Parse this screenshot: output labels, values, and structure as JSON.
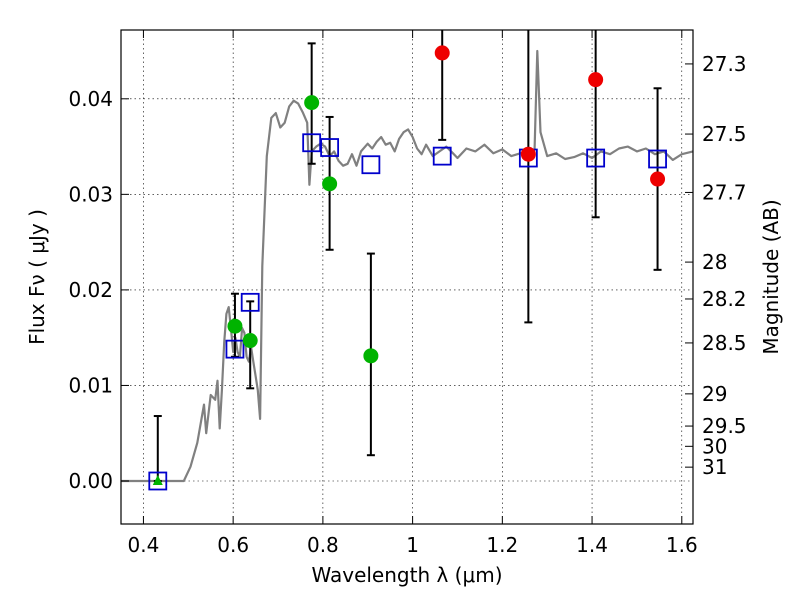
{
  "chart_data": {
    "type": "scatter",
    "xlabel": "Wavelength  λ (μm)",
    "ylabel": "Flux  Fν  ( μJy )",
    "y2label": "Magnitude (AB)",
    "xlim": [
      0.35,
      1.625
    ],
    "ylim": [
      -0.0045,
      0.0472
    ],
    "grid": true,
    "x_ticks": [
      {
        "value": 0.4,
        "label": "0.4"
      },
      {
        "value": 0.6,
        "label": "0.6"
      },
      {
        "value": 0.8,
        "label": "0.8"
      },
      {
        "value": 1.0,
        "label": "1"
      },
      {
        "value": 1.2,
        "label": "1.2"
      },
      {
        "value": 1.4,
        "label": "1.4"
      },
      {
        "value": 1.6,
        "label": "1.6"
      }
    ],
    "y_ticks": [
      {
        "value": 0.0,
        "label": "0.00"
      },
      {
        "value": 0.01,
        "label": "0.01"
      },
      {
        "value": 0.02,
        "label": "0.02"
      },
      {
        "value": 0.03,
        "label": "0.03"
      },
      {
        "value": 0.04,
        "label": "0.04"
      }
    ],
    "mag_ticks": [
      {
        "flux": 0.04365,
        "label": "27.3"
      },
      {
        "flux": 0.03631,
        "label": "27.5"
      },
      {
        "flux": 0.0302,
        "label": "27.7"
      },
      {
        "flux": 0.02291,
        "label": "28"
      },
      {
        "flux": 0.01905,
        "label": "28.2"
      },
      {
        "flux": 0.01445,
        "label": "28.5"
      },
      {
        "flux": 0.00912,
        "label": "29"
      },
      {
        "flux": 0.00575,
        "label": "29.5"
      },
      {
        "flux": 0.00363,
        "label": "30"
      },
      {
        "flux": 0.00145,
        "label": "31"
      }
    ],
    "colors": {
      "sed": "#808080",
      "model": "#0000cc",
      "green": "#00b300",
      "red": "#ee0000",
      "error": "#000000"
    },
    "sed_curve": [
      [
        0.35,
        0.0
      ],
      [
        0.49,
        0.0
      ],
      [
        0.505,
        0.0015
      ],
      [
        0.52,
        0.004
      ],
      [
        0.535,
        0.008
      ],
      [
        0.54,
        0.005
      ],
      [
        0.55,
        0.009
      ],
      [
        0.56,
        0.0085
      ],
      [
        0.565,
        0.0105
      ],
      [
        0.57,
        0.0055
      ],
      [
        0.575,
        0.0095
      ],
      [
        0.58,
        0.0145
      ],
      [
        0.585,
        0.0175
      ],
      [
        0.59,
        0.0182
      ],
      [
        0.595,
        0.016
      ],
      [
        0.6,
        0.0135
      ],
      [
        0.605,
        0.015
      ],
      [
        0.61,
        0.0135
      ],
      [
        0.615,
        0.013
      ],
      [
        0.62,
        0.016
      ],
      [
        0.625,
        0.0155
      ],
      [
        0.63,
        0.013
      ],
      [
        0.635,
        0.0125
      ],
      [
        0.64,
        0.014
      ],
      [
        0.645,
        0.0125
      ],
      [
        0.65,
        0.011
      ],
      [
        0.655,
        0.0095
      ],
      [
        0.66,
        0.0065
      ],
      [
        0.665,
        0.0225
      ],
      [
        0.675,
        0.034
      ],
      [
        0.685,
        0.038
      ],
      [
        0.695,
        0.0385
      ],
      [
        0.705,
        0.037
      ],
      [
        0.715,
        0.0375
      ],
      [
        0.725,
        0.0392
      ],
      [
        0.735,
        0.0398
      ],
      [
        0.745,
        0.0395
      ],
      [
        0.755,
        0.0386
      ],
      [
        0.765,
        0.0375
      ],
      [
        0.77,
        0.031
      ],
      [
        0.775,
        0.0345
      ],
      [
        0.785,
        0.035
      ],
      [
        0.795,
        0.0353
      ],
      [
        0.805,
        0.035
      ],
      [
        0.815,
        0.034
      ],
      [
        0.825,
        0.0345
      ],
      [
        0.835,
        0.0335
      ],
      [
        0.845,
        0.033
      ],
      [
        0.855,
        0.0332
      ],
      [
        0.865,
        0.0342
      ],
      [
        0.875,
        0.033
      ],
      [
        0.885,
        0.0345
      ],
      [
        0.9,
        0.0353
      ],
      [
        0.91,
        0.0348
      ],
      [
        0.92,
        0.0355
      ],
      [
        0.93,
        0.036
      ],
      [
        0.94,
        0.0352
      ],
      [
        0.95,
        0.0354
      ],
      [
        0.96,
        0.0345
      ],
      [
        0.97,
        0.0358
      ],
      [
        0.98,
        0.0365
      ],
      [
        0.99,
        0.0368
      ],
      [
        1.0,
        0.036
      ],
      [
        1.01,
        0.0348
      ],
      [
        1.02,
        0.0342
      ],
      [
        1.03,
        0.0352
      ],
      [
        1.045,
        0.034
      ],
      [
        1.06,
        0.0345
      ],
      [
        1.075,
        0.035
      ],
      [
        1.09,
        0.0343
      ],
      [
        1.1,
        0.0338
      ],
      [
        1.12,
        0.0348
      ],
      [
        1.14,
        0.0345
      ],
      [
        1.16,
        0.0352
      ],
      [
        1.18,
        0.0343
      ],
      [
        1.2,
        0.0347
      ],
      [
        1.22,
        0.034
      ],
      [
        1.24,
        0.0343
      ],
      [
        1.255,
        0.0345
      ],
      [
        1.265,
        0.034
      ],
      [
        1.272,
        0.0348
      ],
      [
        1.278,
        0.045
      ],
      [
        1.285,
        0.0365
      ],
      [
        1.3,
        0.034
      ],
      [
        1.32,
        0.0343
      ],
      [
        1.34,
        0.0337
      ],
      [
        1.36,
        0.0339
      ],
      [
        1.38,
        0.0343
      ],
      [
        1.4,
        0.0338
      ],
      [
        1.42,
        0.0345
      ],
      [
        1.44,
        0.0342
      ],
      [
        1.46,
        0.0348
      ],
      [
        1.48,
        0.035
      ],
      [
        1.5,
        0.0345
      ],
      [
        1.52,
        0.0348
      ],
      [
        1.54,
        0.0342
      ],
      [
        1.56,
        0.0345
      ],
      [
        1.58,
        0.0336
      ],
      [
        1.6,
        0.0342
      ],
      [
        1.625,
        0.0345
      ]
    ],
    "model_points": [
      {
        "x": 0.432,
        "y": 0.0
      },
      {
        "x": 0.604,
        "y": 0.0138
      },
      {
        "x": 0.638,
        "y": 0.0187
      },
      {
        "x": 0.775,
        "y": 0.0354
      },
      {
        "x": 0.815,
        "y": 0.0349
      },
      {
        "x": 0.907,
        "y": 0.0331
      },
      {
        "x": 1.066,
        "y": 0.034
      },
      {
        "x": 1.258,
        "y": 0.0338
      },
      {
        "x": 1.408,
        "y": 0.0338
      },
      {
        "x": 1.546,
        "y": 0.0337
      }
    ],
    "observed_points": [
      {
        "x": 0.604,
        "y": 0.0162,
        "err_low": 0.013,
        "err_high": 0.0196,
        "color": "green"
      },
      {
        "x": 0.638,
        "y": 0.0147,
        "err_low": 0.0097,
        "err_high": 0.0188,
        "color": "green"
      },
      {
        "x": 0.775,
        "y": 0.0396,
        "err_low": 0.0332,
        "err_high": 0.0458,
        "color": "green"
      },
      {
        "x": 0.815,
        "y": 0.0311,
        "err_low": 0.0242,
        "err_high": 0.0381,
        "color": "green"
      },
      {
        "x": 0.907,
        "y": 0.0131,
        "err_low": 0.0027,
        "err_high": 0.0238,
        "color": "green"
      },
      {
        "x": 1.066,
        "y": 0.0448,
        "err_low": 0.0357,
        "err_high": 0.0472,
        "color": "red"
      },
      {
        "x": 1.258,
        "y": 0.0342,
        "err_low": 0.0166,
        "err_high": 0.0472,
        "color": "red"
      },
      {
        "x": 1.408,
        "y": 0.042,
        "err_low": 0.0276,
        "err_high": 0.0472,
        "color": "red"
      },
      {
        "x": 1.546,
        "y": 0.0316,
        "err_low": 0.0221,
        "err_high": 0.0411,
        "color": "red"
      }
    ],
    "upper_limits": [
      {
        "x": 0.432,
        "y": 0.0,
        "err_high": 0.0068,
        "color": "green"
      }
    ]
  }
}
